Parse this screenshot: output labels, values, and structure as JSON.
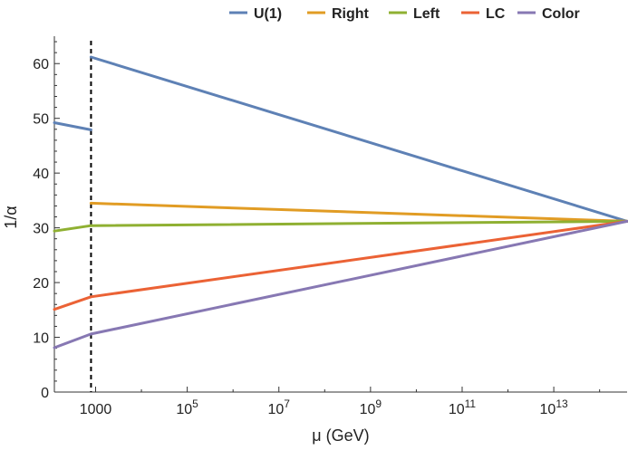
{
  "chart_data": {
    "type": "line",
    "title": "",
    "xlabel": "μ (GeV)",
    "ylabel": "1/α",
    "xscale": "log",
    "xlim_log10": [
      2.1,
      14.6
    ],
    "ylim": [
      0,
      65
    ],
    "x_ticks": [
      {
        "log10": 3,
        "base": "1000",
        "exp": ""
      },
      {
        "log10": 5,
        "base": "10",
        "exp": "5"
      },
      {
        "log10": 7,
        "base": "10",
        "exp": "7"
      },
      {
        "log10": 9,
        "base": "10",
        "exp": "9"
      },
      {
        "log10": 11,
        "base": "10",
        "exp": "11"
      },
      {
        "log10": 13,
        "base": "10",
        "exp": "13"
      }
    ],
    "y_ticks": [
      0,
      10,
      20,
      30,
      40,
      50,
      60
    ],
    "threshold_log10": 2.9,
    "legend_position": "top-right",
    "series": [
      {
        "name": "U(1)",
        "color": "#5e81b5",
        "segments": [
          {
            "x_log10": [
              2.1,
              2.9
            ],
            "y": [
              49.2,
              47.9
            ]
          },
          {
            "x_log10": [
              2.9,
              14.6
            ],
            "y": [
              61.2,
              31.2
            ]
          }
        ]
      },
      {
        "name": "Right",
        "color": "#e19c24",
        "segments": [
          {
            "x_log10": [
              2.9,
              14.6
            ],
            "y": [
              34.5,
              31.2
            ]
          }
        ]
      },
      {
        "name": "Left",
        "color": "#8fb032",
        "segments": [
          {
            "x_log10": [
              2.1,
              2.9
            ],
            "y": [
              29.4,
              30.4
            ]
          },
          {
            "x_log10": [
              2.9,
              14.6
            ],
            "y": [
              30.4,
              31.2
            ]
          }
        ]
      },
      {
        "name": "LC",
        "color": "#eb6235",
        "segments": [
          {
            "x_log10": [
              2.1,
              2.9
            ],
            "y": [
              15.1,
              17.4
            ]
          },
          {
            "x_log10": [
              2.9,
              14.6
            ],
            "y": [
              17.4,
              31.2
            ]
          }
        ]
      },
      {
        "name": "Color",
        "color": "#8778b3",
        "segments": [
          {
            "x_log10": [
              2.1,
              2.9
            ],
            "y": [
              8.1,
              10.6
            ]
          },
          {
            "x_log10": [
              2.9,
              14.6
            ],
            "y": [
              10.6,
              31.2
            ]
          }
        ]
      }
    ]
  }
}
